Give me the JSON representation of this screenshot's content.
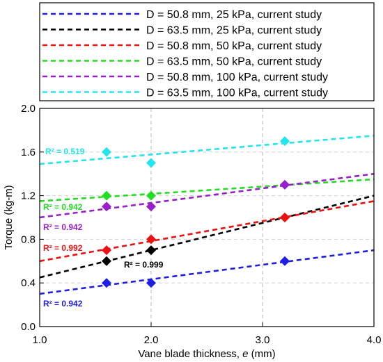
{
  "chart_data": {
    "type": "scatter",
    "xlabel_prefix": "Vane blade thickness, ",
    "xlabel_symbol": "e",
    "xlabel_suffix": " (mm)",
    "ylabel": "Torque (kg-m)",
    "xlim": [
      1.0,
      4.0
    ],
    "ylim": [
      0.0,
      2.0
    ],
    "x_ticks": [
      1.0,
      2.0,
      3.0,
      4.0
    ],
    "x_tick_labels": [
      "1.0",
      "2.0",
      "3.0",
      "4.0"
    ],
    "y_ticks": [
      0.0,
      0.4,
      0.8,
      1.2,
      1.6,
      2.0
    ],
    "y_tick_labels": [
      "0.0",
      "0.4",
      "0.8",
      "1.2",
      "1.6",
      "2.0"
    ],
    "grid": "dashed vertical at 2.0 and 3.0",
    "legend_position": "top, outside plot",
    "series": [
      {
        "name": "D = 50.8 mm, 25 kPa, current study",
        "color": "#1e1ee6",
        "x": [
          1.6,
          2.0,
          3.2
        ],
        "y": [
          0.4,
          0.4,
          0.6
        ],
        "fit": [
          [
            1.0,
            0.3
          ],
          [
            4.0,
            0.7
          ]
        ],
        "r2_label": "R² = 0.942"
      },
      {
        "name": "D = 63.5 mm, 25 kPa, current study",
        "color": "#000000",
        "x": [
          1.6,
          2.0,
          3.2
        ],
        "y": [
          0.6,
          0.7,
          1.0
        ],
        "fit": [
          [
            1.0,
            0.45
          ],
          [
            4.0,
            1.2
          ]
        ],
        "r2_label": "R² = 0.999"
      },
      {
        "name": "D = 50.8 mm, 50 kPa, current study",
        "color": "#ee1111",
        "x": [
          1.6,
          2.0,
          3.2
        ],
        "y": [
          0.7,
          0.8,
          1.0
        ],
        "fit": [
          [
            1.0,
            0.6
          ],
          [
            4.0,
            1.15
          ]
        ],
        "r2_label": "R² = 0.992"
      },
      {
        "name": "D = 63.5 mm, 50 kPa, current study",
        "color": "#22dd22",
        "x": [
          1.6,
          2.0,
          3.2
        ],
        "y": [
          1.2,
          1.2,
          1.3
        ],
        "fit": [
          [
            1.0,
            1.15
          ],
          [
            4.0,
            1.35
          ]
        ],
        "r2_label": "R² = 0.942"
      },
      {
        "name": "D = 50.8 mm, 100 kPa, current study",
        "color": "#9a1fcc",
        "x": [
          1.6,
          2.0,
          3.2
        ],
        "y": [
          1.1,
          1.1,
          1.3
        ],
        "fit": [
          [
            1.0,
            1.0
          ],
          [
            4.0,
            1.4
          ]
        ],
        "r2_label": "R² = 0.942"
      },
      {
        "name": "D = 63.5 mm, 100 kPa, current study",
        "color": "#22e5ee",
        "x": [
          1.6,
          2.0,
          3.2
        ],
        "y": [
          1.6,
          1.5,
          1.7
        ],
        "fit": [
          [
            1.0,
            1.49
          ],
          [
            4.0,
            1.75
          ]
        ],
        "r2_label": "R² = 0.519"
      }
    ]
  }
}
